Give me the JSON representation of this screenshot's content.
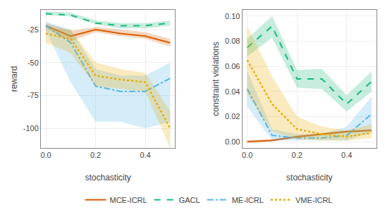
{
  "chart_data": [
    {
      "type": "line",
      "x": [
        0.0,
        0.1,
        0.2,
        0.3,
        0.4,
        0.5
      ],
      "xlabel": "stochasticity",
      "ylabel": "reward",
      "xlim": [
        -0.02,
        0.52
      ],
      "xticks": [
        {
          "value": 0.0,
          "label": "0.0"
        },
        0.2,
        0.4
      ],
      "ylim": [
        -115,
        -10
      ],
      "yticks": [
        -100,
        -75,
        -50,
        -25
      ],
      "grid": true,
      "legend": "bottom",
      "series": [
        {
          "name": "MCE-ICRL",
          "color": "#d95f02",
          "line_style": "solid",
          "values": [
            -22,
            -30,
            -25,
            -28,
            -30,
            -35
          ],
          "lo": [
            -24,
            -34,
            -27,
            -30,
            -32,
            -38
          ],
          "hi": [
            -20,
            -26,
            -23,
            -25,
            -27,
            -32
          ]
        },
        {
          "name": "GACL",
          "color": "#1ab87a",
          "line_style": "dashed",
          "values": [
            -13,
            -14,
            -20,
            -22,
            -22,
            -20
          ],
          "lo": [
            -14,
            -15,
            -21,
            -24,
            -24,
            -22
          ],
          "hi": [
            -11,
            -12,
            -18,
            -20,
            -20,
            -18
          ]
        },
        {
          "name": "ME-ICRL",
          "color": "#56b4e9",
          "line_style": "dashdot",
          "values": [
            -22,
            -35,
            -68,
            -72,
            -72,
            -62
          ],
          "lo": [
            -26,
            -65,
            -95,
            -95,
            -100,
            -95
          ],
          "hi": [
            -19,
            -25,
            -55,
            -60,
            -60,
            -50
          ]
        },
        {
          "name": "VME-ICRL",
          "color": "#e6ac00",
          "line_style": "dotted",
          "values": [
            -28,
            -32,
            -60,
            -63,
            -65,
            -100
          ],
          "lo": [
            -35,
            -43,
            -68,
            -70,
            -72,
            -115
          ],
          "hi": [
            -23,
            -25,
            -50,
            -55,
            -58,
            -87
          ]
        }
      ]
    },
    {
      "type": "line",
      "x": [
        0.0,
        0.1,
        0.2,
        0.3,
        0.4,
        0.5
      ],
      "xlabel": "stochasticity",
      "ylabel": "constraint violations",
      "xlim": [
        -0.02,
        0.52
      ],
      "xticks": [
        {
          "value": 0.0,
          "label": "0.0"
        },
        0.2,
        0.4
      ],
      "ylim": [
        -0.005,
        0.105
      ],
      "yticks": [
        {
          "value": 0.0,
          "label": "0.00"
        },
        0.02,
        0.04,
        0.06,
        0.08,
        {
          "value": 0.1,
          "label": "0.10"
        }
      ],
      "grid": true,
      "legend": "bottom",
      "series": [
        {
          "name": "MCE-ICRL",
          "color": "#d95f02",
          "line_style": "solid",
          "values": [
            0.0,
            0.001,
            0.004,
            0.006,
            0.008,
            0.009
          ],
          "lo": [
            -0.001,
            0.0,
            0.003,
            0.005,
            0.007,
            0.008
          ],
          "hi": [
            0.001,
            0.002,
            0.005,
            0.007,
            0.009,
            0.01
          ]
        },
        {
          "name": "GACL",
          "color": "#1ab87a",
          "line_style": "dashed",
          "values": [
            0.075,
            0.092,
            0.05,
            0.05,
            0.03,
            0.048
          ],
          "lo": [
            0.068,
            0.083,
            0.043,
            0.042,
            0.024,
            0.04
          ],
          "hi": [
            0.082,
            0.1,
            0.057,
            0.058,
            0.037,
            0.056
          ]
        },
        {
          "name": "ME-ICRL",
          "color": "#56b4e9",
          "line_style": "dashdot",
          "values": [
            0.042,
            0.005,
            0.003,
            0.003,
            0.005,
            0.022
          ],
          "lo": [
            0.028,
            0.001,
            0.001,
            0.001,
            0.001,
            0.008
          ],
          "hi": [
            0.056,
            0.01,
            0.006,
            0.006,
            0.012,
            0.036
          ]
        },
        {
          "name": "VME-ICRL",
          "color": "#e6ac00",
          "line_style": "dotted",
          "values": [
            0.065,
            0.03,
            0.01,
            0.006,
            0.004,
            0.007
          ],
          "lo": [
            0.038,
            0.008,
            0.002,
            0.001,
            0.001,
            0.003
          ],
          "hi": [
            0.092,
            0.052,
            0.02,
            0.012,
            0.009,
            0.014
          ]
        }
      ]
    }
  ]
}
